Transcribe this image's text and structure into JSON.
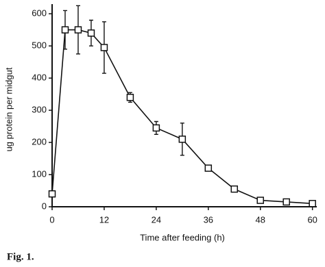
{
  "chart_data": {
    "type": "line",
    "x_label": "Time after feeding (h)",
    "y_label": "ug protein per midgut",
    "caption": "Fig. 1.",
    "x": [
      0,
      3,
      6,
      9,
      12,
      18,
      24,
      30,
      36,
      42,
      48,
      54,
      60
    ],
    "series": [
      {
        "color": "#111111",
        "values": [
          40,
          550,
          550,
          540,
          495,
          340,
          245,
          210,
          120,
          55,
          20,
          15,
          10
        ],
        "errors": [
          null,
          60,
          75,
          40,
          80,
          15,
          20,
          50,
          null,
          null,
          8,
          null,
          null
        ]
      }
    ],
    "xlim": [
      0,
      61
    ],
    "ylim": [
      0,
      630
    ],
    "xticks": [
      0,
      12,
      24,
      36,
      48,
      60
    ],
    "yticks": [
      0,
      100,
      200,
      300,
      400,
      500,
      600
    ]
  }
}
